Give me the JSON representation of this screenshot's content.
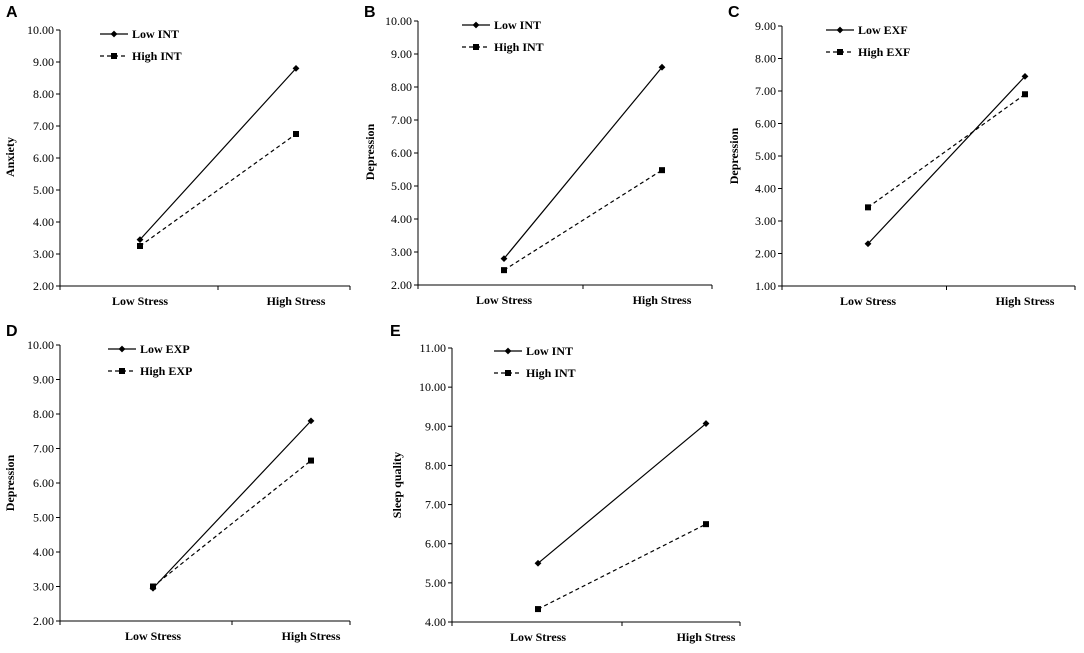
{
  "chart_data": [
    {
      "panel": "A",
      "type": "line",
      "categories": [
        "Low Stress",
        "High Stress"
      ],
      "ylabel": "Anxiety",
      "ylim": [
        2.0,
        10.0
      ],
      "yticks": [
        "2.00",
        "3.00",
        "4.00",
        "5.00",
        "6.00",
        "7.00",
        "8.00",
        "9.00",
        "10.00"
      ],
      "series": [
        {
          "name": "Low INT",
          "style": "solid",
          "marker": "diamond",
          "values": [
            3.45,
            8.8
          ]
        },
        {
          "name": "High INT",
          "style": "dashed",
          "marker": "square",
          "values": [
            3.25,
            6.75
          ]
        }
      ]
    },
    {
      "panel": "B",
      "type": "line",
      "categories": [
        "Low Stress",
        "High Stress"
      ],
      "ylabel": "Depression",
      "ylim": [
        2.0,
        10.0
      ],
      "yticks": [
        "2.00",
        "3.00",
        "4.00",
        "5.00",
        "6.00",
        "7.00",
        "8.00",
        "9.00",
        "10.00"
      ],
      "series": [
        {
          "name": "Low INT",
          "style": "solid",
          "marker": "diamond",
          "values": [
            2.8,
            8.6
          ]
        },
        {
          "name": "High INT",
          "style": "dashed",
          "marker": "square",
          "values": [
            2.45,
            5.48
          ]
        }
      ]
    },
    {
      "panel": "C",
      "type": "line",
      "categories": [
        "Low Stress",
        "High Stress"
      ],
      "ylabel": "Depression",
      "ylim": [
        1.0,
        9.0
      ],
      "yticks": [
        "1.00",
        "2.00",
        "3.00",
        "4.00",
        "5.00",
        "6.00",
        "7.00",
        "8.00",
        "9.00"
      ],
      "series": [
        {
          "name": "Low EXF",
          "style": "solid",
          "marker": "diamond",
          "values": [
            2.3,
            7.45
          ]
        },
        {
          "name": "High EXF",
          "style": "dashed",
          "marker": "square",
          "values": [
            3.42,
            6.9
          ]
        }
      ]
    },
    {
      "panel": "D",
      "type": "line",
      "categories": [
        "Low Stress",
        "High Stress"
      ],
      "ylabel": "Depression",
      "ylim": [
        2.0,
        10.0
      ],
      "yticks": [
        "2.00",
        "3.00",
        "4.00",
        "5.00",
        "6.00",
        "7.00",
        "8.00",
        "9.00",
        "10.00"
      ],
      "series": [
        {
          "name": "Low EXP",
          "style": "solid",
          "marker": "diamond",
          "values": [
            2.95,
            7.8
          ]
        },
        {
          "name": "High EXP",
          "style": "dashed",
          "marker": "square",
          "values": [
            3.0,
            6.65
          ]
        }
      ]
    },
    {
      "panel": "E",
      "type": "line",
      "categories": [
        "Low Stress",
        "High Stress"
      ],
      "ylabel": "Sleep quality",
      "ylim": [
        4.0,
        11.0
      ],
      "yticks": [
        "4.00",
        "5.00",
        "6.00",
        "7.00",
        "8.00",
        "9.00",
        "10.00",
        "11.00"
      ],
      "series": [
        {
          "name": "Low INT",
          "style": "solid",
          "marker": "diamond",
          "values": [
            5.5,
            9.07
          ]
        },
        {
          "name": "High INT",
          "style": "dashed",
          "marker": "square",
          "values": [
            4.33,
            6.5
          ]
        }
      ]
    }
  ]
}
